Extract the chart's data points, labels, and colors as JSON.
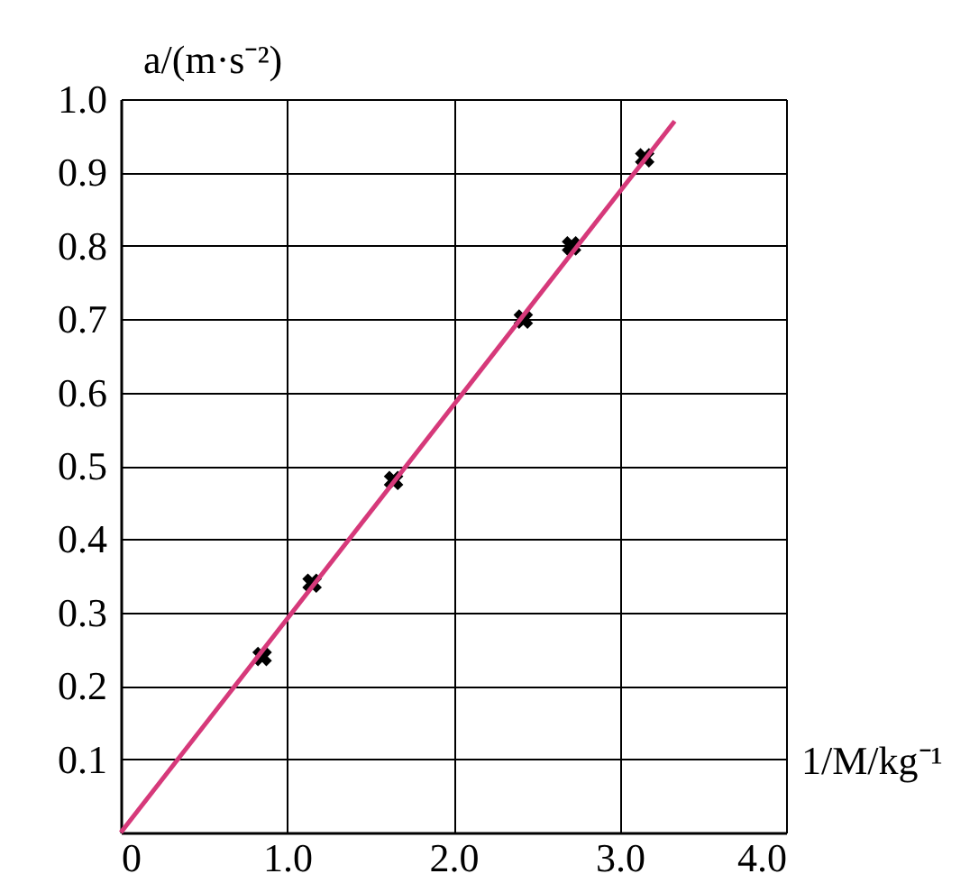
{
  "chart_data": {
    "type": "scatter",
    "xlabel": "1/M/kg⁻¹",
    "ylabel": "a/(m·s⁻²)",
    "xlim": [
      0,
      4.0
    ],
    "ylim": [
      0,
      1.0
    ],
    "xticks": [
      0,
      {
        "value": 1,
        "label": "1.0"
      },
      {
        "value": 2,
        "label": "2.0"
      },
      {
        "value": 3,
        "label": "3.0"
      },
      {
        "value": 4,
        "label": "4.0"
      }
    ],
    "yticks": [
      {
        "value": 0.1,
        "label": "0.1"
      },
      {
        "value": 0.2,
        "label": "0.2"
      },
      {
        "value": 0.3,
        "label": "0.3"
      },
      {
        "value": 0.4,
        "label": "0.4"
      },
      {
        "value": 0.5,
        "label": "0.5"
      },
      {
        "value": 0.6,
        "label": "0.6"
      },
      {
        "value": 0.7,
        "label": "0.7"
      },
      {
        "value": 0.8,
        "label": "0.8"
      },
      {
        "value": 0.9,
        "label": "0.9"
      },
      {
        "value": 1,
        "label": "1.0"
      }
    ],
    "grid": true,
    "marker": "cross",
    "series": [
      {
        "color": "#000000",
        "x": [
          0.85,
          1.15,
          1.64,
          2.42,
          2.71,
          3.15
        ],
        "values": [
          0.24,
          0.34,
          0.48,
          0.7,
          0.8,
          0.92
        ]
      },
      {
        "type": "line",
        "color": "#d6397a",
        "marker": "none",
        "x": [
          0,
          3.33
        ],
        "values": [
          0,
          0.97
        ]
      }
    ]
  }
}
